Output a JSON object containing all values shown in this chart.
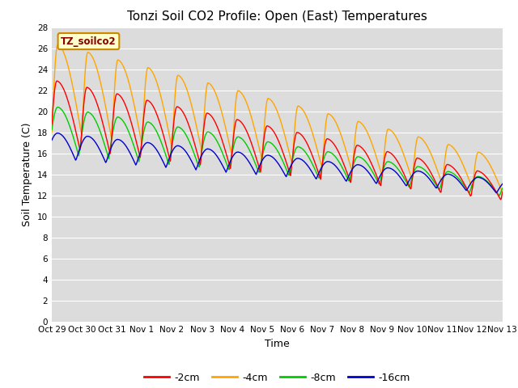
{
  "title": "Tonzi Soil CO2 Profile: Open (East) Temperatures",
  "xlabel": "Time",
  "ylabel": "Soil Temperature (C)",
  "ylim": [
    0,
    28
  ],
  "yticks": [
    0,
    2,
    4,
    6,
    8,
    10,
    12,
    14,
    16,
    18,
    20,
    22,
    24,
    26,
    28
  ],
  "colors": {
    "m2cm": "#FF0000",
    "m4cm": "#FFA500",
    "m8cm": "#00CC00",
    "m16cm": "#0000CC"
  },
  "legend_label_box": "TZ_soilco2",
  "legend_labels": [
    "-2cm",
    "-4cm",
    "-8cm",
    "-16cm"
  ],
  "plot_bg": "#DCDCDC",
  "fig_bg": "#FFFFFF",
  "x_tick_labels": [
    "Oct 29",
    "Oct 30",
    "Oct 31",
    "Nov 1",
    "Nov 2",
    "Nov 3",
    "Nov 4",
    "Nov 5",
    "Nov 6",
    "Nov 7",
    "Nov 8",
    "Nov 9",
    "Nov 10",
    "Nov 11",
    "Nov 12",
    "Nov 13"
  ],
  "title_fontsize": 11,
  "axis_fontsize": 9,
  "tick_fontsize": 7.5
}
